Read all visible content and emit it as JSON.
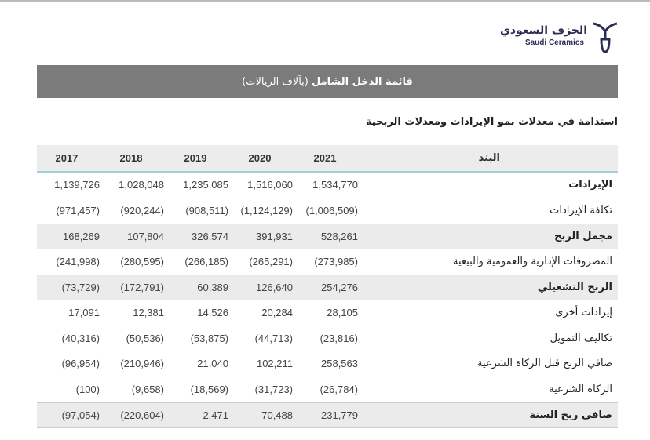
{
  "logo": {
    "arabic": "الخزف السعودي",
    "english": "Saudi Ceramics"
  },
  "banner": {
    "title": "قائمة الدخل الشامل",
    "unit": "(بآلاف الريالات)"
  },
  "subtitle": "استدامة في معدلات نمو الإيرادات ومعدلات الربحية",
  "table": {
    "header": [
      "البند",
      "2021",
      "2020",
      "2019",
      "2018",
      "2017"
    ],
    "rows": [
      [
        "الإيرادات",
        "1,534,770",
        "1,516,060",
        "1,235,085",
        "1,028,048",
        "1,139,726"
      ],
      [
        "تكلفة الإيرادات",
        "(1,006,509)",
        "(1,124,129)",
        "(908,511)",
        "(920,244)",
        "(971,457)"
      ],
      [
        "مجمل الربح",
        "528,261",
        "391,931",
        "326,574",
        "107,804",
        "168,269"
      ],
      [
        "المصروفات الإدارية والعمومية والبيعية",
        "(273,985)",
        "(265,291)",
        "(266,185)",
        "(280,595)",
        "(241,998)"
      ],
      [
        "الربح التشغيلي",
        "254,276",
        "126,640",
        "60,389",
        "(172,791)",
        "(73,729)"
      ],
      [
        "إيرادات أخرى",
        "28,105",
        "20,284",
        "14,526",
        "12,381",
        "17,091"
      ],
      [
        "تكاليف التمويل",
        "(23,816)",
        "(44,713)",
        "(53,875)",
        "(50,536)",
        "(40,316)"
      ],
      [
        "صافي الربح قبل الزكاة الشرعية",
        "258,563",
        "102,211",
        "21,040",
        "(210,946)",
        "(96,954)"
      ],
      [
        "الزكاة الشرعية",
        "(26,784)",
        "(31,723)",
        "(18,569)",
        "(9,658)",
        "(100)"
      ],
      [
        "صافي ربح السنة",
        "231,779",
        "70,488",
        "2,471",
        "(220,604)",
        "(97,054)"
      ]
    ],
    "highlighted_rows": [
      2,
      4,
      9
    ]
  }
}
